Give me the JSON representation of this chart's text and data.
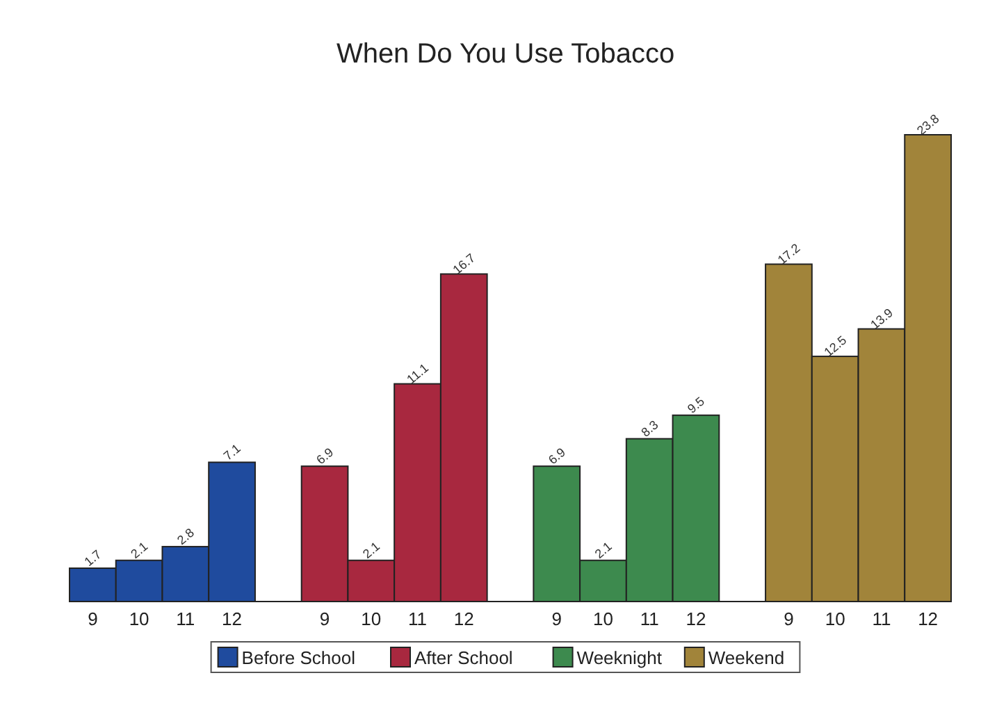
{
  "chart_data": {
    "type": "bar",
    "title": "When Do You Use Tobacco",
    "categories": [
      "9",
      "10",
      "11",
      "12",
      null,
      "9",
      "10",
      "11",
      "12",
      null,
      "9",
      "10",
      "11",
      "12",
      null,
      "9",
      "10",
      "11",
      "12"
    ],
    "series": [
      {
        "name": "Before School",
        "color": "#1f4b9e",
        "values": [
          1.7,
          2.1,
          2.8,
          7.1,
          null,
          null,
          null,
          null,
          null,
          null,
          null,
          null,
          null,
          null,
          null,
          null,
          null,
          null,
          null
        ]
      },
      {
        "name": "After School",
        "color": "#a8283f",
        "values": [
          null,
          null,
          null,
          null,
          null,
          6.9,
          2.1,
          11.1,
          16.7,
          null,
          null,
          null,
          null,
          null,
          null,
          null,
          null,
          null,
          null
        ]
      },
      {
        "name": "Weeknight",
        "color": "#3d8a4e",
        "values": [
          null,
          null,
          null,
          null,
          null,
          null,
          null,
          null,
          null,
          null,
          6.9,
          2.1,
          8.3,
          9.5,
          null,
          null,
          null,
          null,
          null
        ]
      },
      {
        "name": "Weekend",
        "color": "#a1843a",
        "values": [
          null,
          null,
          null,
          null,
          null,
          null,
          null,
          null,
          null,
          null,
          null,
          null,
          null,
          null,
          null,
          17.2,
          12.5,
          13.9,
          23.8
        ]
      }
    ],
    "data_labels": true,
    "legend": "bottom",
    "grid": false
  }
}
